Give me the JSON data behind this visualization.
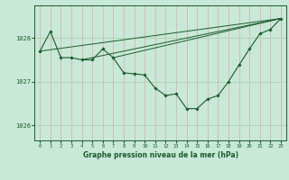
{
  "background_color": "#c8e8d8",
  "grid_color_v": "#ddaaaa",
  "grid_color_h": "#aaccaa",
  "line_color": "#1a5c2a",
  "title": "Graphe pression niveau de la mer (hPa)",
  "xlim": [
    -0.5,
    23.5
  ],
  "ylim": [
    1025.65,
    1028.75
  ],
  "yticks": [
    1026,
    1027,
    1028
  ],
  "xticks": [
    0,
    1,
    2,
    3,
    4,
    5,
    6,
    7,
    8,
    9,
    10,
    11,
    12,
    13,
    14,
    15,
    16,
    17,
    18,
    19,
    20,
    21,
    22,
    23
  ],
  "main_series": [
    [
      0,
      1027.7
    ],
    [
      1,
      1028.15
    ],
    [
      2,
      1027.55
    ],
    [
      3,
      1027.55
    ],
    [
      4,
      1027.5
    ],
    [
      5,
      1027.5
    ],
    [
      6,
      1027.75
    ],
    [
      7,
      1027.55
    ],
    [
      8,
      1027.2
    ],
    [
      9,
      1027.18
    ],
    [
      10,
      1027.15
    ],
    [
      11,
      1026.85
    ],
    [
      12,
      1026.68
    ],
    [
      13,
      1026.72
    ],
    [
      14,
      1026.38
    ],
    [
      15,
      1026.38
    ],
    [
      16,
      1026.6
    ],
    [
      17,
      1026.68
    ],
    [
      18,
      1027.0
    ],
    [
      19,
      1027.38
    ],
    [
      20,
      1027.75
    ],
    [
      21,
      1028.1
    ],
    [
      22,
      1028.2
    ],
    [
      23,
      1028.45
    ]
  ],
  "extra_lines": [
    [
      [
        0,
        1027.7
      ],
      [
        23,
        1028.45
      ]
    ],
    [
      [
        4,
        1027.5
      ],
      [
        23,
        1028.45
      ]
    ],
    [
      [
        7,
        1027.55
      ],
      [
        23,
        1028.45
      ]
    ]
  ],
  "fig_width": 3.2,
  "fig_height": 2.0,
  "dpi": 100
}
